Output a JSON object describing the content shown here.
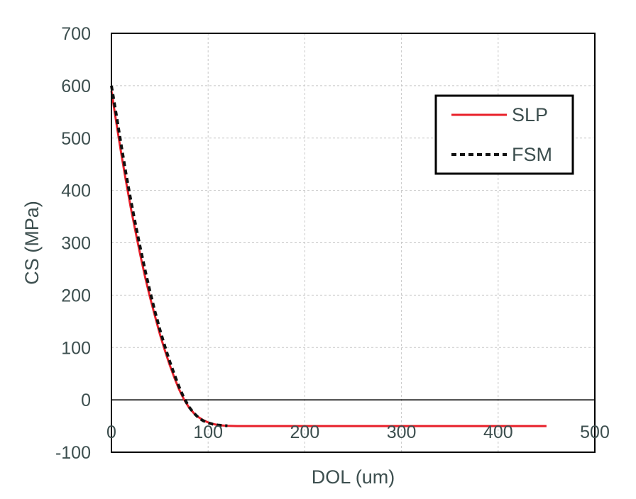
{
  "chart_data": {
    "type": "line",
    "title": "",
    "xlabel": "DOL (um)",
    "ylabel": "CS (MPa)",
    "xlim": [
      0,
      500
    ],
    "ylim": [
      -100,
      700
    ],
    "xticks": [
      0,
      100,
      200,
      300,
      400,
      500
    ],
    "yticks": [
      -100,
      0,
      100,
      200,
      300,
      400,
      500,
      600,
      700
    ],
    "grid": true,
    "legend_position": "top-right",
    "series": [
      {
        "name": "SLP",
        "color": "#e8202a",
        "style": "solid",
        "x": [
          0,
          5,
          10,
          15,
          20,
          25,
          30,
          35,
          40,
          45,
          50,
          55,
          60,
          65,
          70,
          75,
          80,
          85,
          90,
          95,
          100,
          105,
          110,
          115,
          120,
          130,
          150,
          200,
          250,
          300,
          350,
          400,
          450
        ],
        "y": [
          590,
          530,
          472,
          418,
          367,
          320,
          275,
          233,
          195,
          160,
          126,
          96,
          68,
          43,
          20,
          1,
          -14,
          -25,
          -33,
          -39,
          -43,
          -46,
          -48,
          -49,
          -49.5,
          -50,
          -50,
          -50,
          -50,
          -50,
          -50,
          -50,
          -50
        ]
      },
      {
        "name": "FSM",
        "color": "#111111",
        "style": "dashed",
        "x": [
          0,
          5,
          10,
          15,
          20,
          25,
          30,
          35,
          40,
          45,
          50,
          55,
          60,
          65,
          70,
          75,
          80,
          85,
          90,
          95,
          100,
          105,
          110,
          115,
          120
        ],
        "y": [
          600,
          545,
          488,
          433,
          382,
          334,
          289,
          246,
          206,
          169,
          135,
          104,
          75,
          49,
          25,
          4,
          -13,
          -25,
          -34,
          -40,
          -44,
          -46.5,
          -48,
          -49,
          -49.5
        ]
      }
    ]
  }
}
